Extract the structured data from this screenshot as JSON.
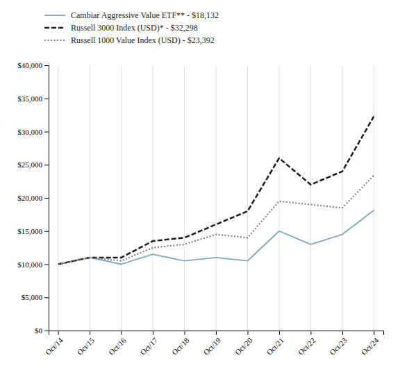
{
  "chart_data": {
    "type": "line",
    "categories": [
      "Oct/14",
      "Oct/15",
      "Oct/16",
      "Oct/17",
      "Oct/18",
      "Oct/19",
      "Oct/20",
      "Oct/21",
      "Oct/22",
      "Oct/23",
      "Oct/24"
    ],
    "series": [
      {
        "name": "Cambiar Aggressive Value ETF** - $18,132",
        "color": "#7baabe",
        "line_style": "solid",
        "values": [
          10000,
          11000,
          10000,
          11500,
          10500,
          11000,
          10500,
          15000,
          13000,
          14500,
          18132
        ]
      },
      {
        "name": "Russell 3000 Index (USD)* - $32,298",
        "color": "#1a1a1a",
        "line_style": "dashed",
        "values": [
          10000,
          11000,
          11000,
          13500,
          14000,
          16000,
          18000,
          26000,
          22000,
          24000,
          32298
        ]
      },
      {
        "name": "Russell 1000 Value Index (USD) - $23,392",
        "color": "#808080",
        "line_style": "dotted",
        "values": [
          10000,
          11000,
          10500,
          12500,
          13000,
          14500,
          14000,
          19500,
          19000,
          18500,
          23392
        ]
      }
    ],
    "ylim": [
      0,
      40000
    ],
    "yticks": [
      {
        "value": 0,
        "label": "$0"
      },
      {
        "value": 5000,
        "label": "$5,000"
      },
      {
        "value": 10000,
        "label": "$10,000"
      },
      {
        "value": 15000,
        "label": "$15,000"
      },
      {
        "value": 20000,
        "label": "$20,000"
      },
      {
        "value": 25000,
        "label": "$25,000"
      },
      {
        "value": 30000,
        "label": "$30,000"
      },
      {
        "value": 35000,
        "label": "$35,000"
      },
      {
        "value": 40000,
        "label": "$40,000"
      }
    ],
    "grid": "x",
    "legend": "top-left"
  }
}
